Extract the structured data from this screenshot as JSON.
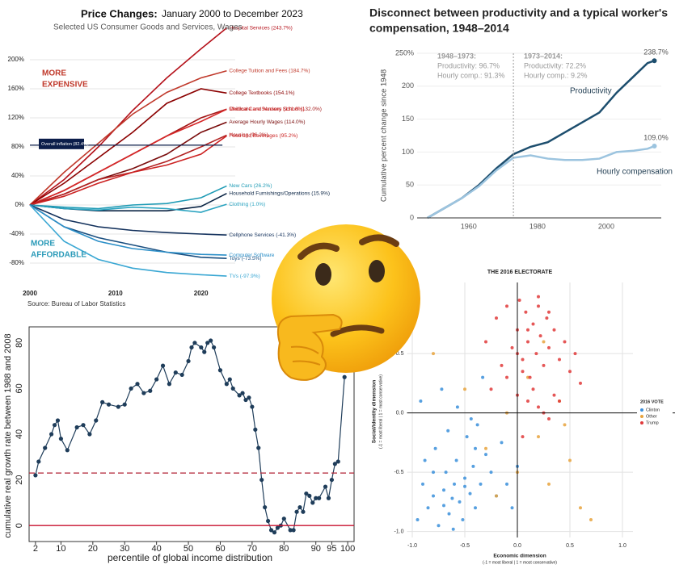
{
  "chart_data": [
    {
      "type": "line",
      "title": "Price Changes:",
      "title_detail": "January 2000 to December 2023",
      "subtitle": "Selected US Consumer Goods and Services, Wages",
      "source": "Source: Bureau of Labor Statistics",
      "annotations": [
        [
          "MORE",
          "EXPENSIVE"
        ],
        [
          "MORE",
          "AFFORDABLE"
        ]
      ],
      "reference_line": {
        "label": "Overall inflation (82.4%)",
        "value": 82.4
      },
      "x": [
        2000,
        2004,
        2008,
        2012,
        2016,
        2020,
        2023
      ],
      "series": [
        {
          "name": "Hospital Services (243.7%)",
          "color": "#b5121b",
          "values": [
            0,
            35,
            80,
            130,
            175,
            215,
            243.7
          ]
        },
        {
          "name": "College Tuition and Fees (184.7%)",
          "color": "#c0392b",
          "values": [
            0,
            45,
            85,
            125,
            155,
            175,
            184.7
          ]
        },
        {
          "name": "College Textbooks (154.1%)",
          "color": "#8b0000",
          "values": [
            0,
            30,
            65,
            100,
            140,
            160,
            154.1
          ]
        },
        {
          "name": "Childcare and Nursery School (132.0%)",
          "color": "#a31515",
          "values": [
            0,
            20,
            45,
            70,
            95,
            120,
            132.0
          ]
        },
        {
          "name": "Medical Care Services (131.8%)",
          "color": "#d62728",
          "values": [
            0,
            20,
            45,
            70,
            95,
            115,
            131.8
          ]
        },
        {
          "name": "Average Hourly Wages (114.0%)",
          "color": "#7a0c0c",
          "values": [
            0,
            15,
            35,
            50,
            70,
            100,
            114.0
          ]
        },
        {
          "name": "Housing (96.2%)",
          "color": "#b22222",
          "values": [
            0,
            15,
            35,
            45,
            60,
            80,
            96.2
          ]
        },
        {
          "name": "Food and Beverages (95.2%)",
          "color": "#cc2222",
          "values": [
            0,
            12,
            30,
            45,
            55,
            70,
            95.2
          ]
        },
        {
          "name": "New Cars (26.2%)",
          "color": "#1f9bb5",
          "values": [
            0,
            -3,
            -5,
            0,
            2,
            10,
            26.2
          ]
        },
        {
          "name": "Household Furnishings/Operations (15.9%)",
          "color": "#0b2545",
          "values": [
            0,
            -5,
            -8,
            -8,
            -8,
            -2,
            15.9
          ]
        },
        {
          "name": "Clothing (1.0%)",
          "color": "#2aa3c0",
          "values": [
            0,
            -5,
            -7,
            -3,
            -5,
            -10,
            1.0
          ]
        },
        {
          "name": "Cellphone Services (-41.3%)",
          "color": "#13315c",
          "values": [
            0,
            -20,
            -30,
            -35,
            -38,
            -40,
            -41.3
          ]
        },
        {
          "name": "Toys (-73.5%)",
          "color": "#1a4f80",
          "values": [
            0,
            -30,
            -45,
            -55,
            -65,
            -72,
            -73.5
          ]
        },
        {
          "name": "Computer Software",
          "color": "#2b8fc8",
          "values": [
            0,
            -30,
            -50,
            -60,
            -65,
            -68,
            -69
          ]
        },
        {
          "name": "TVs (-97.9%)",
          "color": "#3aa7d3",
          "values": [
            0,
            -50,
            -75,
            -87,
            -93,
            -96,
            -97.9
          ]
        }
      ],
      "xlim": [
        2000,
        2024
      ],
      "xticks": [
        2000,
        2010,
        2020
      ],
      "ylim": [
        -100,
        250
      ],
      "yticks": [
        {
          "value": -80,
          "label": "-80%"
        },
        {
          "value": -40,
          "label": "-40%"
        },
        {
          "value": 0,
          "label": "0%"
        },
        {
          "value": 40,
          "label": "40%"
        },
        {
          "value": 80,
          "label": "80%"
        },
        {
          "value": 120,
          "label": "120%"
        },
        {
          "value": 160,
          "label": "160%"
        },
        {
          "value": 200,
          "label": "200%"
        }
      ],
      "grid": true
    },
    {
      "type": "line",
      "title": [
        "Disconnect between productivity and a typical worker's",
        "compensation, 1948–2014"
      ],
      "y_label": "Cumulative percent change since 1948",
      "annotations": [
        [
          "1948–1973:",
          "Productivity: 96.7%",
          "Hourly comp.: 91.3%"
        ],
        [
          "1973–2014:",
          "Productivity: 72.2%",
          "Hourly comp.: 9.2%"
        ]
      ],
      "divider_x": 1973,
      "x": [
        1948,
        1953,
        1958,
        1963,
        1968,
        1973,
        1978,
        1983,
        1988,
        1993,
        1998,
        2003,
        2008,
        2012,
        2014
      ],
      "series": [
        {
          "name": "Productivity",
          "color": "#1d4e6e",
          "values": [
            0,
            15,
            30,
            50,
            75,
            96.7,
            108,
            115,
            130,
            145,
            160,
            190,
            215,
            235,
            238.7
          ],
          "value_labels": [
            null,
            null,
            null,
            null,
            null,
            null,
            null,
            null,
            null,
            null,
            null,
            null,
            null,
            null,
            "238.7%"
          ]
        },
        {
          "name": "Hourly compensation",
          "color": "#9cc4df",
          "values": [
            0,
            15,
            30,
            48,
            72,
            91.3,
            95,
            90,
            88,
            88,
            90,
            100,
            102,
            105,
            109.0
          ],
          "value_labels": [
            null,
            null,
            null,
            null,
            null,
            null,
            null,
            null,
            null,
            null,
            null,
            null,
            null,
            null,
            "109.0%"
          ]
        }
      ],
      "xlim": [
        1945,
        2016
      ],
      "xticks": [
        1960,
        1980,
        2000
      ],
      "ylim": [
        0,
        250
      ],
      "yticks": [
        0,
        50,
        100,
        150,
        200,
        {
          "value": 250,
          "label": "250%"
        }
      ],
      "grid": true
    },
    {
      "type": "line",
      "x_label": "percentile of global income distribution",
      "y_label": "cumulative real growth rate between 1988 and 2008",
      "reference_lines": [
        {
          "value": 23,
          "color": "#b22234",
          "dashed": true
        },
        {
          "value": 0,
          "color": "#c8102e",
          "dashed": false
        }
      ],
      "x": [
        2,
        3,
        5,
        7,
        8,
        9,
        10,
        12,
        15,
        17,
        19,
        21,
        23,
        25,
        28,
        30,
        32,
        34,
        36,
        38,
        40,
        42,
        44,
        46,
        48,
        50,
        51,
        52,
        54,
        55,
        56,
        57,
        58,
        60,
        62,
        63,
        64,
        66,
        67,
        68,
        69,
        70,
        71,
        72,
        73,
        74,
        75,
        76,
        77,
        78,
        79,
        80,
        82,
        83,
        84,
        85,
        86,
        87,
        88,
        89,
        90,
        91,
        93,
        94,
        95,
        96,
        97,
        99
      ],
      "series": [
        {
          "name": null,
          "color": "#1f3d5a",
          "values": [
            22,
            28,
            34,
            40,
            44,
            46,
            38,
            33,
            43,
            44,
            40,
            46,
            54,
            53,
            52,
            53,
            60,
            62,
            58,
            59,
            64,
            70,
            62,
            67,
            66,
            72,
            78,
            80,
            78,
            76,
            80,
            81,
            78,
            68,
            62,
            64,
            60,
            57,
            58,
            55,
            56,
            52,
            42,
            34,
            20,
            8,
            2,
            -2,
            -3,
            -1,
            0,
            3,
            -2,
            -2,
            6,
            8,
            6,
            14,
            13,
            10,
            12,
            12,
            17,
            12,
            20,
            27,
            28,
            65
          ]
        }
      ],
      "xlim": [
        0,
        102
      ],
      "xticks": [
        2,
        10,
        20,
        30,
        40,
        50,
        60,
        70,
        80,
        90,
        95,
        100
      ],
      "ylim": [
        -7,
        87
      ],
      "yticks": [
        0,
        20,
        40,
        60,
        80
      ],
      "grid": false
    },
    {
      "type": "scatter",
      "title": "THE 2016 ELECTORATE",
      "legend_title": "2016 VOTE",
      "legend": "right",
      "x_label": [
        "Economic dimension",
        "(-1 = most liberal | 1 = most conservative)"
      ],
      "y_label": [
        "Social/identity dimension",
        "(-1 = most liberal | 1 = most conservative)"
      ],
      "series": [
        {
          "name": "Clinton",
          "color": "#3a8fdb",
          "x": [
            -0.95,
            -0.9,
            -0.85,
            -0.8,
            -0.78,
            -0.75,
            -0.7,
            -0.68,
            -0.65,
            -0.62,
            -0.6,
            -0.58,
            -0.55,
            -0.52,
            -0.5,
            -0.48,
            -0.45,
            -0.42,
            -0.4,
            -0.38,
            -0.35,
            -0.3,
            -0.25,
            -0.2,
            -0.15,
            -0.1,
            -0.05,
            0.0,
            -0.92,
            -0.72,
            -0.66,
            -0.57,
            -0.44,
            -0.33,
            -0.88,
            -0.61,
            -0.5,
            -0.7,
            -0.8,
            -0.4
          ],
          "y": [
            -0.9,
            -0.6,
            -0.8,
            -0.7,
            -0.3,
            -0.95,
            -0.65,
            -0.5,
            -0.85,
            -0.72,
            -0.6,
            -0.4,
            -0.75,
            -0.9,
            -0.55,
            -0.2,
            -0.68,
            -0.45,
            -0.8,
            -0.1,
            -0.6,
            -0.35,
            -0.5,
            -0.7,
            -0.25,
            -0.6,
            -0.8,
            -0.45,
            0.1,
            0.2,
            -0.15,
            0.05,
            -0.05,
            0.3,
            -0.4,
            -0.98,
            -0.62,
            -0.78,
            -0.5,
            -0.3
          ]
        },
        {
          "name": "Other",
          "color": "#e8a33d",
          "x": [
            -0.8,
            -0.5,
            -0.3,
            -0.1,
            0.0,
            0.1,
            0.2,
            0.3,
            0.4,
            0.5,
            0.6,
            0.7,
            -0.2,
            0.25,
            0.45
          ],
          "y": [
            0.5,
            0.2,
            -0.3,
            0.0,
            -0.5,
            0.3,
            -0.2,
            -0.6,
            0.1,
            -0.4,
            -0.8,
            -0.9,
            -0.7,
            0.6,
            -0.1
          ]
        },
        {
          "name": "Trump",
          "color": "#e0393a",
          "x": [
            -0.3,
            -0.2,
            -0.15,
            -0.1,
            -0.05,
            0.0,
            0.02,
            0.05,
            0.08,
            0.1,
            0.12,
            0.15,
            0.18,
            0.2,
            0.22,
            0.25,
            0.28,
            0.3,
            0.35,
            0.4,
            0.45,
            0.5,
            0.55,
            0.6,
            -0.25,
            0.0,
            0.1,
            0.2,
            0.3,
            0.05,
            0.15,
            0.25,
            0.35,
            -0.1,
            0.0,
            0.1,
            0.4,
            0.2,
            0.05,
            0.3
          ],
          "y": [
            0.6,
            0.8,
            0.4,
            0.9,
            0.55,
            0.7,
            0.95,
            0.45,
            0.85,
            0.6,
            0.3,
            0.75,
            0.5,
            0.9,
            0.65,
            0.4,
            0.8,
            0.55,
            0.7,
            0.45,
            0.6,
            0.35,
            0.5,
            0.25,
            0.2,
            0.15,
            0.1,
            0.05,
            -0.05,
            0.35,
            0.2,
            0.0,
            0.15,
            0.3,
            0.5,
            0.7,
            0.1,
            0.98,
            -0.2,
            0.85
          ]
        }
      ],
      "xlim": [
        -1.05,
        1.1
      ],
      "xticks": [
        {
          "value": -1,
          "label": "-1.0"
        },
        {
          "value": -0.5,
          "label": "-0.5"
        },
        {
          "value": 0,
          "label": "0.0"
        },
        {
          "value": 0.5,
          "label": "0.5"
        },
        {
          "value": 1,
          "label": "1.0"
        }
      ],
      "ylim": [
        -1.05,
        1.1
      ],
      "yticks": [
        {
          "value": -1,
          "label": "-1.0"
        },
        {
          "value": -0.5,
          "label": "-0.5"
        },
        {
          "value": 0,
          "label": "0.0"
        },
        {
          "value": 0.5,
          "label": "0.5"
        }
      ],
      "grid": true
    }
  ]
}
